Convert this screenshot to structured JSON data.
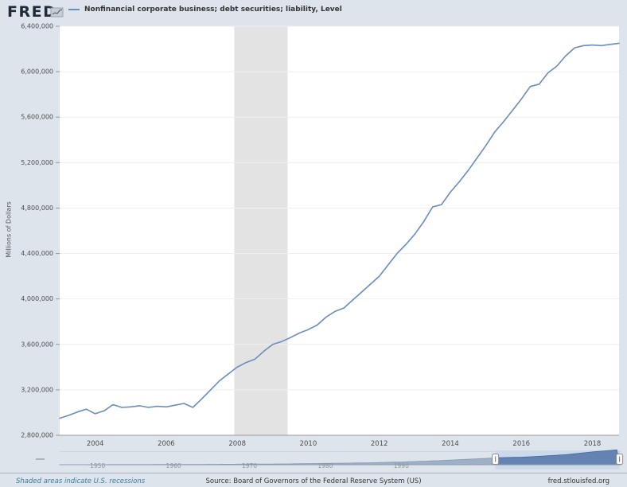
{
  "header": {
    "brand": "FRED",
    "legend_label": "Nonfinancial corporate business; debt securities; liability, Level"
  },
  "colors": {
    "background": "#dde4ec",
    "plot_background": "#ffffff",
    "line": "#6a8cbe",
    "grid": "#efefef",
    "axis": "#999999",
    "tick_label": "#4d4d4d",
    "recession_band": "#e3e3e3",
    "slider_area_unselected": "#9db0c6",
    "slider_area_selected": "#6583b2",
    "slider_window_bg": "#cbd9ea",
    "footer_link": "#3a7ca0"
  },
  "chart_data": {
    "type": "line",
    "title": "Nonfinancial corporate business; debt securities; liability, Level",
    "ylabel": "Millions of Dollars",
    "xlabel": "",
    "x_start": 2003.0,
    "x_step": 0.25,
    "xlim": [
      2003.0,
      2018.75
    ],
    "ylim": [
      2800000,
      6400000
    ],
    "yticks": [
      2800000,
      3200000,
      3600000,
      4000000,
      4400000,
      4800000,
      5200000,
      5600000,
      6000000,
      6400000
    ],
    "xticks": [
      2004,
      2006,
      2008,
      2010,
      2012,
      2014,
      2016,
      2018
    ],
    "grid": true,
    "legend_position": "top-left",
    "recessions": [
      {
        "start": 2007.917,
        "end": 2009.417
      }
    ],
    "series": [
      {
        "name": "Nonfinancial corporate business; debt securities; liability, Level",
        "values": [
          2950000,
          2975000,
          3005000,
          3030000,
          2990000,
          3015000,
          3070000,
          3045000,
          3050000,
          3060000,
          3045000,
          3055000,
          3050000,
          3065000,
          3080000,
          3045000,
          3120000,
          3200000,
          3280000,
          3340000,
          3400000,
          3440000,
          3470000,
          3540000,
          3600000,
          3625000,
          3660000,
          3700000,
          3730000,
          3770000,
          3840000,
          3890000,
          3920000,
          3990000,
          4060000,
          4130000,
          4200000,
          4300000,
          4400000,
          4480000,
          4570000,
          4680000,
          4810000,
          4830000,
          4940000,
          5030000,
          5130000,
          5240000,
          5350000,
          5470000,
          5560000,
          5660000,
          5760000,
          5870000,
          5890000,
          5990000,
          6050000,
          6140000,
          6210000,
          6230000,
          6235000,
          6230000,
          6240000,
          6250000
        ]
      }
    ]
  },
  "slider": {
    "range": [
      1945,
      2019
    ],
    "selection": [
      2002.4,
      2018.75
    ],
    "decade_labels": [
      1950,
      1960,
      1970,
      1980,
      1990
    ],
    "profile": [
      [
        1945,
        0.004
      ],
      [
        1955,
        0.01
      ],
      [
        1965,
        0.025
      ],
      [
        1975,
        0.055
      ],
      [
        1985,
        0.12
      ],
      [
        1990,
        0.18
      ],
      [
        1995,
        0.27
      ],
      [
        2000,
        0.39
      ],
      [
        2003,
        0.47
      ],
      [
        2006,
        0.5
      ],
      [
        2009,
        0.58
      ],
      [
        2012,
        0.68
      ],
      [
        2015,
        0.84
      ],
      [
        2018.75,
        1.0
      ]
    ]
  },
  "footer": {
    "recession_note": "Shaded areas indicate U.S. recessions",
    "source": "Source: Board of Governors of the Federal Reserve System (US)",
    "site": "fred.stlouisfed.org"
  }
}
